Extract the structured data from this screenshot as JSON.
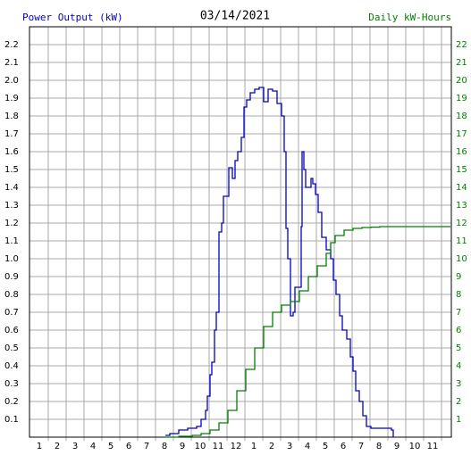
{
  "chart_data": {
    "type": "step-line",
    "title": "03/14/2021",
    "xlim": [
      0.45,
      24.05
    ],
    "xticks": [
      1,
      2,
      3,
      4,
      5,
      6,
      7,
      8,
      9,
      10,
      11,
      12,
      {
        "value": 13,
        "label": "1"
      },
      {
        "value": 14,
        "label": "2"
      },
      {
        "value": 15,
        "label": "3"
      },
      {
        "value": 16,
        "label": "4"
      },
      {
        "value": 17,
        "label": "5"
      },
      {
        "value": 18,
        "label": "6"
      },
      {
        "value": 19,
        "label": "7"
      },
      {
        "value": 20,
        "label": "8"
      },
      {
        "value": 21,
        "label": "9"
      },
      {
        "value": 22,
        "label": "10"
      },
      {
        "value": 23,
        "label": "11"
      }
    ],
    "ylim": [
      0,
      2.3
    ],
    "yticks": [
      0.1,
      0.2,
      0.3,
      0.4,
      0.5,
      0.6,
      0.7,
      0.8,
      0.9,
      {
        "value": 1,
        "label": "1.0"
      },
      1.1,
      1.2,
      1.3,
      1.4,
      1.5,
      1.6,
      1.7,
      1.8,
      1.9,
      {
        "value": 2,
        "label": "2.0"
      },
      2.1,
      2.2
    ],
    "y2lim": [
      0,
      23
    ],
    "y2ticks": [
      1,
      2,
      3,
      4,
      5,
      6,
      7,
      8,
      9,
      10,
      11,
      12,
      13,
      14,
      15,
      16,
      17,
      18,
      19,
      20,
      21,
      22
    ],
    "grid": true,
    "series": [
      {
        "name": "Power Output (kW)",
        "color": "#0000cc",
        "axis": "y",
        "x": [
          8.05,
          8.3,
          8.8,
          9.3,
          9.8,
          10.05,
          10.3,
          10.4,
          10.55,
          10.65,
          10.8,
          10.9,
          11.05,
          11.2,
          11.3,
          11.45,
          11.6,
          11.8,
          11.95,
          12.1,
          12.3,
          12.45,
          12.6,
          12.8,
          13.05,
          13.3,
          13.55,
          13.8,
          14.05,
          14.3,
          14.55,
          14.7,
          14.8,
          14.9,
          15.05,
          15.2,
          15.3,
          15.55,
          15.65,
          15.7,
          15.8,
          15.9,
          16.05,
          16.2,
          16.3,
          16.45,
          16.6,
          16.8,
          17.05,
          17.3,
          17.45,
          17.6,
          17.8,
          17.95,
          18.2,
          18.4,
          18.55,
          18.7,
          18.9,
          19.1,
          19.3,
          19.55,
          20.05,
          20.55,
          20.7,
          20.8
        ],
        "values": [
          0.01,
          0.02,
          0.04,
          0.05,
          0.06,
          0.1,
          0.15,
          0.23,
          0.35,
          0.42,
          0.6,
          0.7,
          1.15,
          1.2,
          1.35,
          1.35,
          1.51,
          1.45,
          1.55,
          1.6,
          1.68,
          1.85,
          1.89,
          1.93,
          1.95,
          1.96,
          1.88,
          1.95,
          1.94,
          1.87,
          1.8,
          1.6,
          1.17,
          1.0,
          0.68,
          0.7,
          0.84,
          0.84,
          1.18,
          1.6,
          1.5,
          1.4,
          1.4,
          1.45,
          1.42,
          1.36,
          1.26,
          1.12,
          1.05,
          1.0,
          0.88,
          0.8,
          0.68,
          0.6,
          0.55,
          0.45,
          0.37,
          0.26,
          0.2,
          0.12,
          0.06,
          0.05,
          0.05,
          0.05,
          0.04,
          0
        ]
      },
      {
        "name": "Daily kW-Hours",
        "color": "#008000",
        "axis": "y2",
        "x": [
          8.05,
          8.8,
          9.55,
          10.05,
          10.55,
          11.05,
          11.55,
          12.05,
          12.55,
          13.05,
          13.55,
          14.05,
          14.55,
          15.05,
          15.55,
          16.05,
          16.55,
          17.05,
          17.3,
          17.55,
          18.05,
          18.55,
          19.05,
          19.55,
          20.05,
          24
        ],
        "values": [
          0,
          0.05,
          0.1,
          0.2,
          0.4,
          0.8,
          1.5,
          2.6,
          3.8,
          5,
          6.2,
          7,
          7.4,
          7.6,
          8.2,
          9,
          9.6,
          10.3,
          10.9,
          11.3,
          11.6,
          11.7,
          11.75,
          11.77,
          11.8,
          11.8
        ]
      }
    ]
  }
}
